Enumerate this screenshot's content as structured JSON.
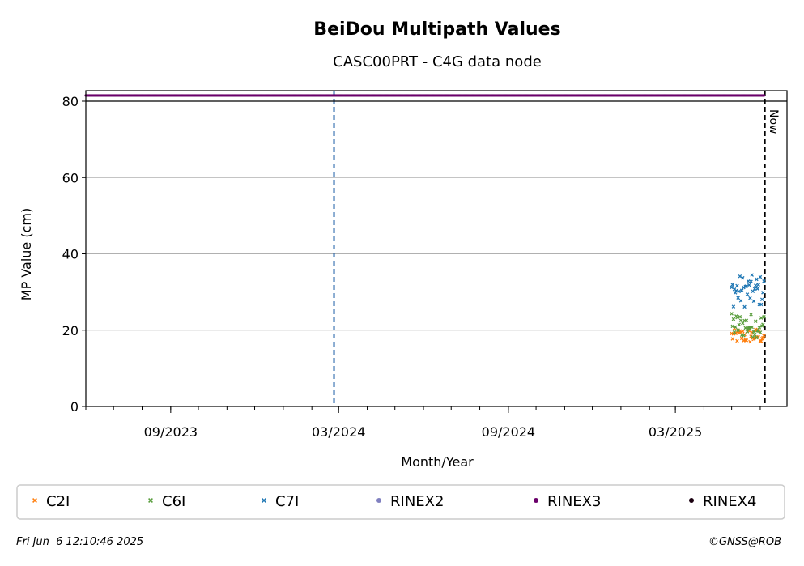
{
  "chart_data": {
    "type": "scatter",
    "title": "BeiDou Multipath Values",
    "subtitle": "CASC00PRT - C4G data node",
    "xlabel": "Month/Year",
    "ylabel": "MP Value (cm)",
    "x_range": [
      "2023-06-01",
      "2025-06-30"
    ],
    "ylim": [
      0,
      80
    ],
    "y_ticks": [
      0,
      20,
      40,
      60,
      80
    ],
    "x_ticks": [
      {
        "date": "2023-09-01",
        "label": "09/2023"
      },
      {
        "date": "2024-03-01",
        "label": "03/2024"
      },
      {
        "date": "2024-09-01",
        "label": "09/2024"
      },
      {
        "date": "2025-03-01",
        "label": "03/2025"
      }
    ],
    "grid": "horizontal",
    "now_line": {
      "date": "2025-06-06",
      "label": "Now"
    },
    "event_line": {
      "date": "2024-02-25",
      "color": "#1f5fa8"
    },
    "series": [
      {
        "name": "C2I",
        "marker": "x",
        "color": "#ff7f0e",
        "x_range": [
          "2025-05-01",
          "2025-06-05"
        ],
        "y_range": [
          16.5,
          20.5
        ]
      },
      {
        "name": "C6I",
        "marker": "x",
        "color": "#5a9e3e",
        "x_range": [
          "2025-05-01",
          "2025-06-05"
        ],
        "y_range": [
          18,
          24.5
        ]
      },
      {
        "name": "C7I",
        "marker": "x",
        "color": "#1f77b4",
        "x_range": [
          "2025-05-01",
          "2025-06-05"
        ],
        "y_range": [
          26,
          34.5
        ]
      },
      {
        "name": "RINEX2",
        "marker": "dot",
        "color": "#8080c0",
        "x_range": [],
        "y_range": []
      },
      {
        "name": "RINEX3",
        "marker": "dot",
        "color": "#6a006a",
        "x_range": [
          "2023-06-01",
          "2025-06-05"
        ],
        "y_value": 81.5
      },
      {
        "name": "RINEX4",
        "marker": "dot",
        "color": "#1a0010",
        "x_range": [],
        "y_range": []
      }
    ],
    "legend_position": "bottom"
  },
  "footer": {
    "timestamp": "Fri Jun  6 12:10:46 2025",
    "credit": "©GNSS@ROB"
  }
}
